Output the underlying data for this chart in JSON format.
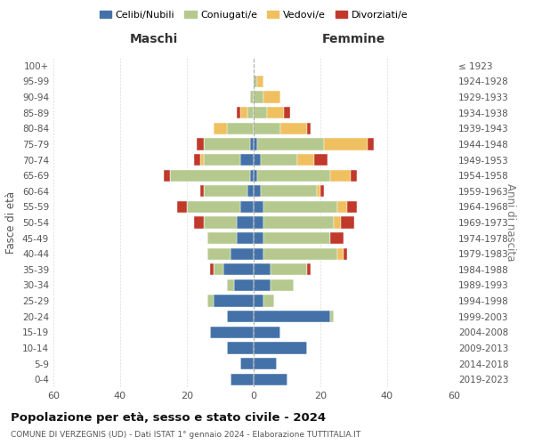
{
  "age_groups": [
    "0-4",
    "5-9",
    "10-14",
    "15-19",
    "20-24",
    "25-29",
    "30-34",
    "35-39",
    "40-44",
    "45-49",
    "50-54",
    "55-59",
    "60-64",
    "65-69",
    "70-74",
    "75-79",
    "80-84",
    "85-89",
    "90-94",
    "95-99",
    "100+"
  ],
  "birth_years": [
    "2019-2023",
    "2014-2018",
    "2009-2013",
    "2004-2008",
    "1999-2003",
    "1994-1998",
    "1989-1993",
    "1984-1988",
    "1979-1983",
    "1974-1978",
    "1969-1973",
    "1964-1968",
    "1959-1963",
    "1954-1958",
    "1949-1953",
    "1944-1948",
    "1939-1943",
    "1934-1938",
    "1929-1933",
    "1924-1928",
    "≤ 1923"
  ],
  "colors": {
    "celibi": "#4472a8",
    "coniugati": "#b5c98e",
    "vedovi": "#f0c060",
    "divorziati": "#c0392b"
  },
  "maschi": {
    "celibi": [
      7,
      4,
      8,
      13,
      8,
      12,
      6,
      9,
      7,
      5,
      5,
      4,
      2,
      1,
      4,
      1,
      0,
      0,
      0,
      0,
      0
    ],
    "coniugati": [
      0,
      0,
      0,
      0,
      0,
      2,
      2,
      3,
      7,
      9,
      10,
      16,
      13,
      24,
      11,
      14,
      8,
      2,
      1,
      0,
      0
    ],
    "vedovi": [
      0,
      0,
      0,
      0,
      0,
      0,
      0,
      0,
      0,
      0,
      0,
      0,
      0,
      0,
      1,
      0,
      4,
      2,
      0,
      0,
      0
    ],
    "divorziati": [
      0,
      0,
      0,
      0,
      0,
      0,
      0,
      1,
      0,
      0,
      3,
      3,
      1,
      2,
      2,
      2,
      0,
      1,
      0,
      0,
      0
    ]
  },
  "femmine": {
    "celibi": [
      10,
      7,
      16,
      8,
      23,
      3,
      5,
      5,
      3,
      3,
      3,
      3,
      2,
      1,
      2,
      1,
      0,
      0,
      0,
      0,
      0
    ],
    "coniugati": [
      0,
      0,
      0,
      0,
      1,
      3,
      7,
      11,
      22,
      20,
      21,
      22,
      17,
      22,
      11,
      20,
      8,
      4,
      3,
      1,
      0
    ],
    "vedovi": [
      0,
      0,
      0,
      0,
      0,
      0,
      0,
      0,
      2,
      0,
      2,
      3,
      1,
      6,
      5,
      13,
      8,
      5,
      5,
      2,
      0
    ],
    "divorziati": [
      0,
      0,
      0,
      0,
      0,
      0,
      0,
      1,
      1,
      4,
      4,
      3,
      1,
      2,
      4,
      2,
      1,
      2,
      0,
      0,
      0
    ]
  },
  "title": "Popolazione per età, sesso e stato civile - 2024",
  "subtitle": "COMUNE DI VERZEGNIS (UD) - Dati ISTAT 1° gennaio 2024 - Elaborazione TUTTITALIA.IT",
  "xlabel_left": "Maschi",
  "xlabel_right": "Femmine",
  "ylabel_left": "Fasce di età",
  "ylabel_right": "Anni di nascita",
  "xlim": 60,
  "legend_labels": [
    "Celibi/Nubili",
    "Coniugati/e",
    "Vedovi/e",
    "Divorziati/e"
  ],
  "background_color": "#ffffff",
  "grid_color": "#cccccc"
}
